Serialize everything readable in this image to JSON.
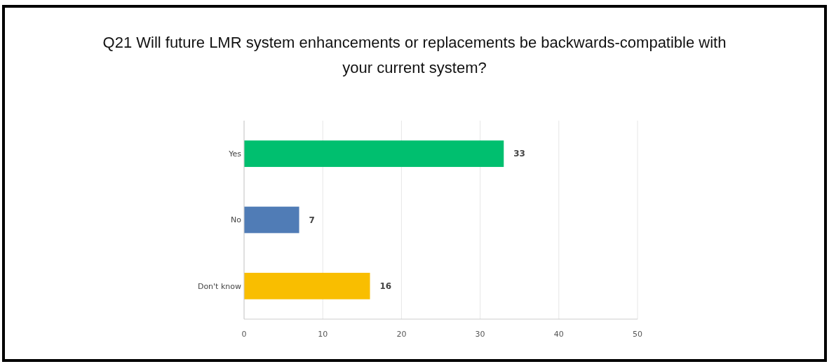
{
  "chart_data": {
    "type": "bar",
    "orientation": "horizontal",
    "title": "Q21 Will future LMR system enhancements or replacements be backwards-compatible with your current system?",
    "categories": [
      "Yes",
      "No",
      "Don't know"
    ],
    "values": [
      33,
      7,
      16
    ],
    "colors": [
      "#00bf6f",
      "#507cb6",
      "#f9be00"
    ],
    "xlim": [
      0,
      50
    ],
    "xticks": [
      0,
      10,
      20,
      30,
      40,
      50
    ],
    "grid": "x",
    "data_labels": true
  }
}
